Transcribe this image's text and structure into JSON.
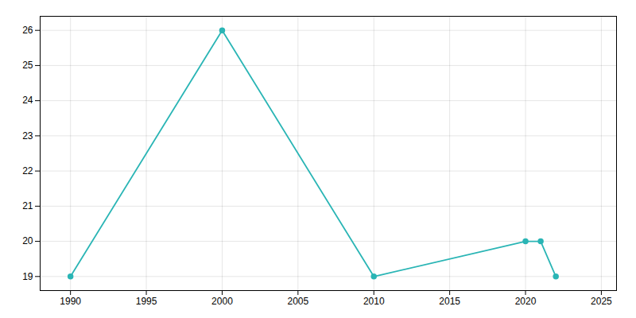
{
  "chart_data": {
    "type": "line",
    "x": [
      1990,
      2000,
      2010,
      2020,
      2021,
      2022
    ],
    "values": [
      19,
      26,
      19,
      20,
      20,
      19
    ],
    "color": "#2ab5b5",
    "marker": "circle",
    "xlim": [
      1988,
      2026
    ],
    "ylim": [
      18.6,
      26.4
    ],
    "xticks": [
      1990,
      1995,
      2000,
      2005,
      2010,
      2015,
      2020,
      2025
    ],
    "yticks": [
      19,
      20,
      21,
      22,
      23,
      24,
      25,
      26
    ],
    "grid": true
  }
}
